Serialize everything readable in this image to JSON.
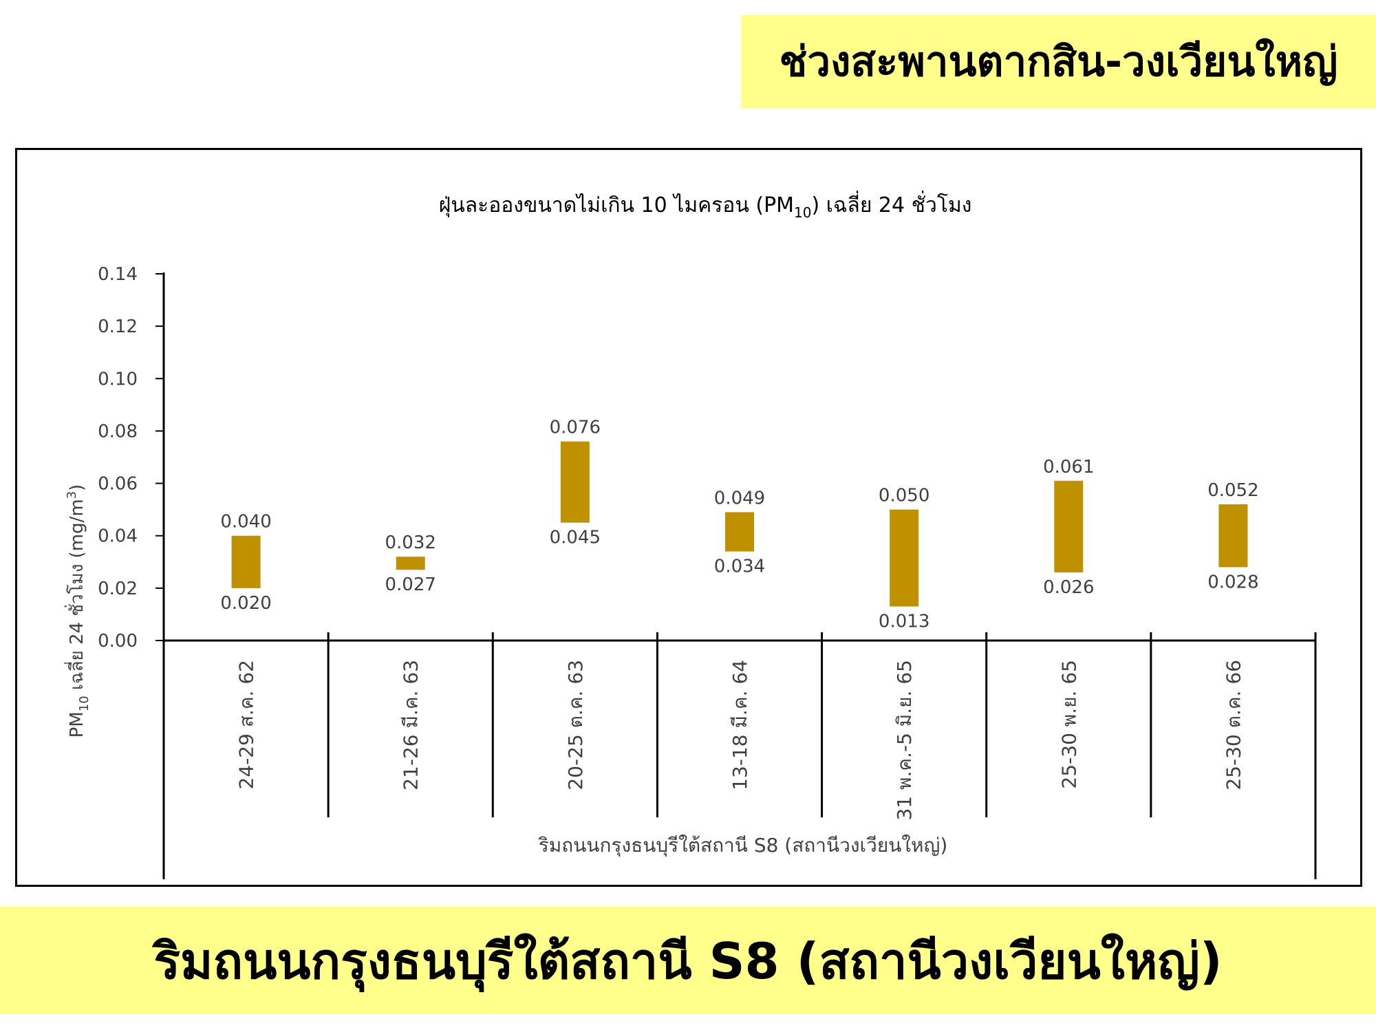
{
  "header": {
    "banner": "ช่วงสะพานตากสิน-วงเวียนใหญ่"
  },
  "footer": {
    "banner": "ริมถนนกรุงธนบุรีใต้สถานี S8 (สถานีวงเวียนใหญ่)"
  },
  "chart_data": {
    "type": "bar",
    "subtype": "floating-range",
    "title": "ฝุ่นละอองขนาดไม่เกิน 10 ไมครอน (PM10) เฉลี่ย 24 ชั่วโมง",
    "ylabel": "PM10 เฉลี่ย 24 ชั่วโมง (mg/m3)",
    "xlabel": "ริมถนนกรุงธนบุรีใต้สถานี S8 (สถานีวงเวียนใหญ่)",
    "ylim": [
      0,
      0.14
    ],
    "yticks": [
      "0.00",
      "0.02",
      "0.04",
      "0.06",
      "0.08",
      "0.10",
      "0.12",
      "0.14"
    ],
    "categories": [
      "24-29 ส.ค. 62",
      "21-26 มี.ค. 63",
      "20-25 ต.ค. 63",
      "13-18 มี.ค. 64",
      "31 พ.ค.-5 มิ.ย. 65",
      "25-30 พ.ย. 65",
      "25-30 ต.ค. 66"
    ],
    "series": [
      {
        "min": [
          0.02,
          0.027,
          0.045,
          0.034,
          0.013,
          0.026,
          0.028
        ],
        "max": [
          0.04,
          0.032,
          0.076,
          0.049,
          0.05,
          0.061,
          0.052
        ]
      }
    ],
    "min_labels": [
      "0.020",
      "0.027",
      "0.045",
      "0.034",
      "0.013",
      "0.026",
      "0.028"
    ],
    "max_labels": [
      "0.040",
      "0.032",
      "0.076",
      "0.049",
      "0.050",
      "0.061",
      "0.052"
    ],
    "bar_color": "#bf9000",
    "grid": false,
    "legend": "none"
  }
}
